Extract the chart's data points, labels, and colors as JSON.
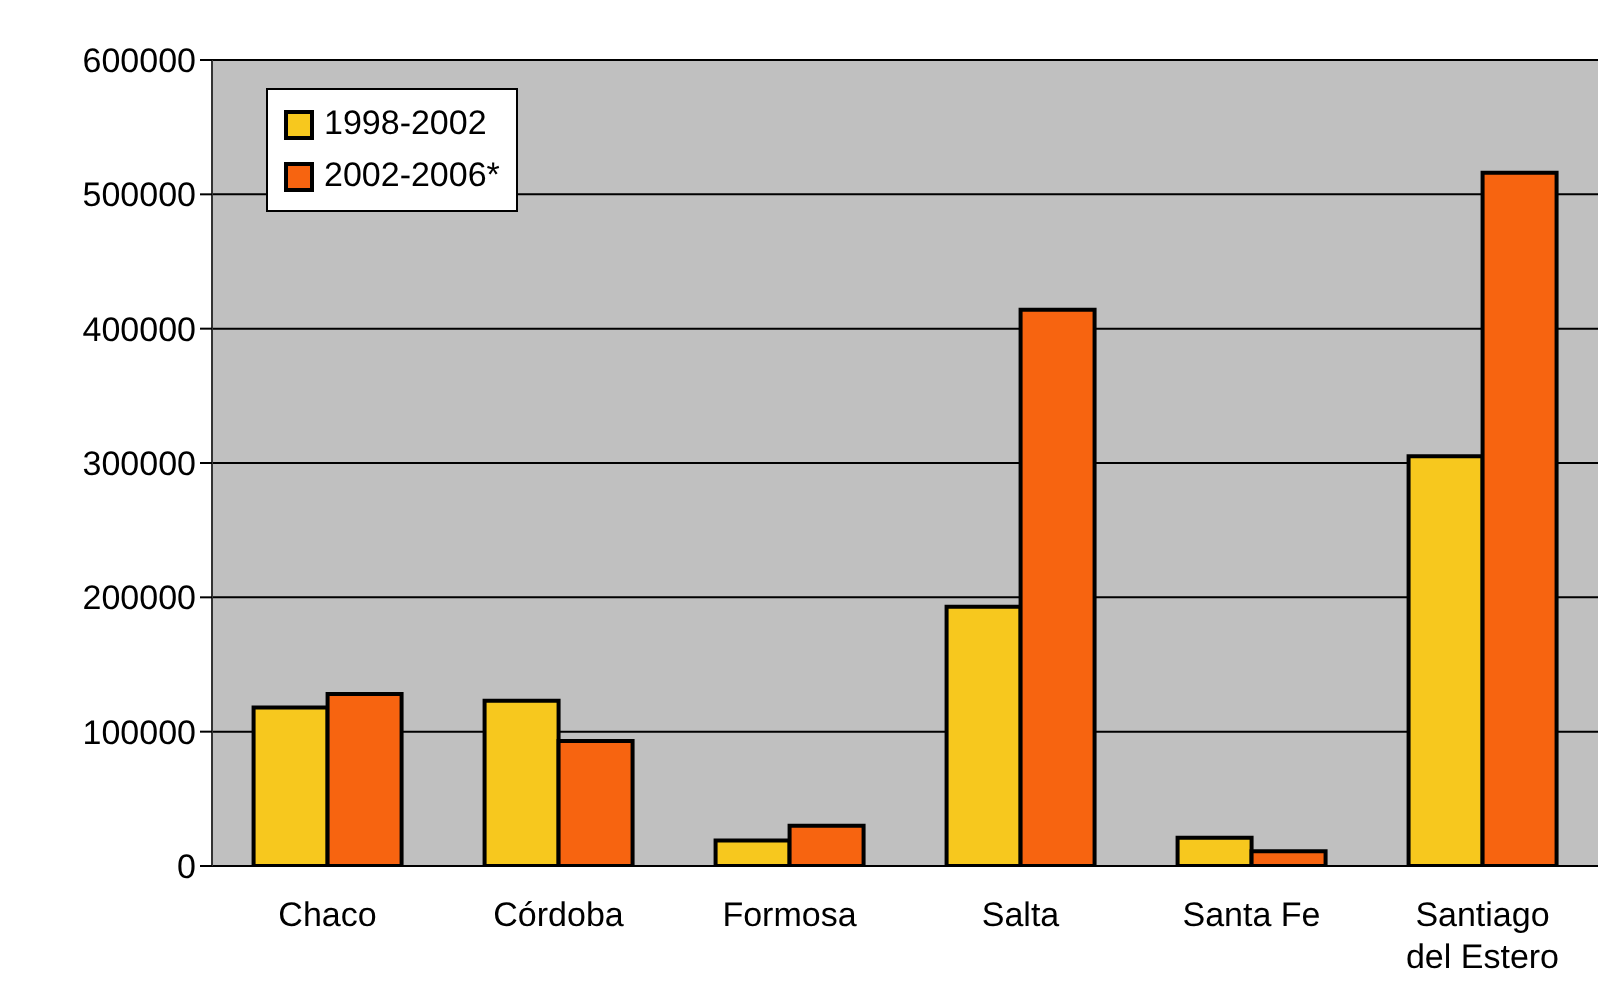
{
  "chart_data": {
    "type": "bar",
    "categories": [
      "Chaco",
      "Córdoba",
      "Formosa",
      "Salta",
      "Santa Fe",
      "Santiago del Estero"
    ],
    "series": [
      {
        "name": "1998-2002",
        "color": "#f7c81e",
        "values": [
          118000,
          123000,
          19000,
          193000,
          21000,
          305000
        ]
      },
      {
        "name": "2002-2006*",
        "color": "#f76410",
        "values": [
          128000,
          93000,
          30000,
          414000,
          11000,
          516000
        ]
      }
    ],
    "ylim": [
      0,
      600000
    ],
    "yticks": [
      0,
      100000,
      200000,
      300000,
      400000,
      500000,
      600000
    ],
    "grid": "y",
    "legend": "top left"
  }
}
